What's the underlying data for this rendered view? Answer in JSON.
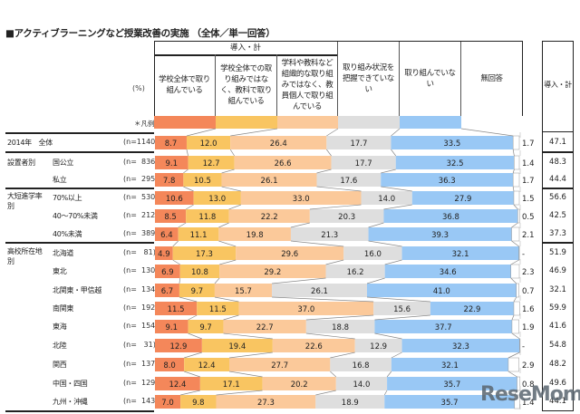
{
  "title": "■アクティブラーニングなど授業改善の実施 （全体／単一回答）",
  "unit_label": "(%)",
  "legend_label": "＊凡例",
  "header": {
    "group_label": "導入・計",
    "columns": [
      "学校全体で取り組んでいる",
      "学校全体での取り組みではなく、教科で取り組んでいる",
      "学科や教科など組織的な取り組みではなく、教員個人で取り組んでいる",
      "取り組み状況を把握できていない",
      "取り組んでいない",
      "無回答"
    ],
    "total_label": "導入・計"
  },
  "colors": {
    "school_wide": "#f4875a",
    "subject": "#f9c561",
    "individual": "#fbc99a",
    "unknown": "#dedede",
    "not_doing": "#99c8f5",
    "no_answer": "#ffffff"
  },
  "watermark": "ReseMom",
  "chart_data": {
    "type": "bar",
    "orientation": "horizontal",
    "stacked": true,
    "title": "■アクティブラーニングなど授業改善の実施 （全体／単一回答）",
    "xlabel": "",
    "ylabel": "",
    "unit": "%",
    "xlim": [
      0,
      100
    ],
    "legend": [
      "学校全体で取り組んでいる",
      "学校全体での取り組みではなく、教科で取り組んでいる",
      "学科や教科など組織的な取り組みではなく、教員個人で取り組んでいる",
      "取り組み状況を把握できていない",
      "取り組んでいない",
      "無回答"
    ],
    "legend_placement": "top",
    "rows": [
      {
        "group": "2014年　全体",
        "label": "",
        "n": "(n=1140)",
        "values": [
          8.7,
          12.0,
          26.4,
          17.7,
          33.5,
          1.7
        ],
        "total": "47.1"
      },
      {
        "group": "設置者別",
        "label": "国公立",
        "n": "(n=  836)",
        "values": [
          9.1,
          12.7,
          26.6,
          17.7,
          32.5,
          1.4
        ],
        "total": "48.3"
      },
      {
        "group": "",
        "label": "私立",
        "n": "(n=  295)",
        "values": [
          7.8,
          10.5,
          26.1,
          17.6,
          36.3,
          1.7
        ],
        "total": "44.4"
      },
      {
        "group": "大短進学率別",
        "label": "70%以上",
        "n": "(n=  530)",
        "values": [
          10.6,
          13.0,
          33.0,
          14.0,
          27.9,
          1.5
        ],
        "total": "56.6"
      },
      {
        "group": "",
        "label": "40～70%未満",
        "n": "(n=  212)",
        "values": [
          8.5,
          11.8,
          22.2,
          20.3,
          36.8,
          0.5
        ],
        "total": "42.5"
      },
      {
        "group": "",
        "label": "40%未満",
        "n": "(n=  389)",
        "values": [
          6.4,
          11.1,
          19.8,
          21.3,
          39.3,
          2.1
        ],
        "total": "37.3"
      },
      {
        "group": "高校所在地別",
        "label": "北海道",
        "n": "(n=   81)",
        "values": [
          4.9,
          17.3,
          29.6,
          16.0,
          32.1,
          null
        ],
        "total": "51.9"
      },
      {
        "group": "",
        "label": "東北",
        "n": "(n=  130)",
        "values": [
          6.9,
          10.8,
          29.2,
          16.2,
          34.6,
          2.3
        ],
        "total": "46.9"
      },
      {
        "group": "",
        "label": "北関東・甲信越",
        "n": "(n=  134)",
        "values": [
          6.7,
          9.7,
          15.7,
          26.1,
          41.0,
          0.7
        ],
        "total": "32.1"
      },
      {
        "group": "",
        "label": "南関東",
        "n": "(n=  192)",
        "values": [
          11.5,
          11.5,
          37.0,
          15.6,
          22.9,
          1.6
        ],
        "total": "59.9"
      },
      {
        "group": "",
        "label": "東海",
        "n": "(n=  154)",
        "values": [
          9.1,
          9.7,
          22.7,
          18.8,
          37.7,
          1.9
        ],
        "total": "41.6"
      },
      {
        "group": "",
        "label": "北陸",
        "n": "(n=   31)",
        "values": [
          12.9,
          19.4,
          22.6,
          12.9,
          32.3,
          null
        ],
        "total": "54.8"
      },
      {
        "group": "",
        "label": "関西",
        "n": "(n=  137)",
        "values": [
          8.0,
          12.4,
          27.7,
          16.8,
          32.1,
          2.9
        ],
        "total": "48.2"
      },
      {
        "group": "",
        "label": "中国・四国",
        "n": "(n=  129)",
        "values": [
          12.4,
          17.1,
          20.2,
          14.0,
          35.7,
          0.8
        ],
        "total": "49.6"
      },
      {
        "group": "",
        "label": "九州・沖縄",
        "n": "(n=  143)",
        "values": [
          7.0,
          9.8,
          27.3,
          18.9,
          35.7,
          1.4
        ],
        "total": "44.1"
      }
    ],
    "no_answer_dash": "-"
  }
}
